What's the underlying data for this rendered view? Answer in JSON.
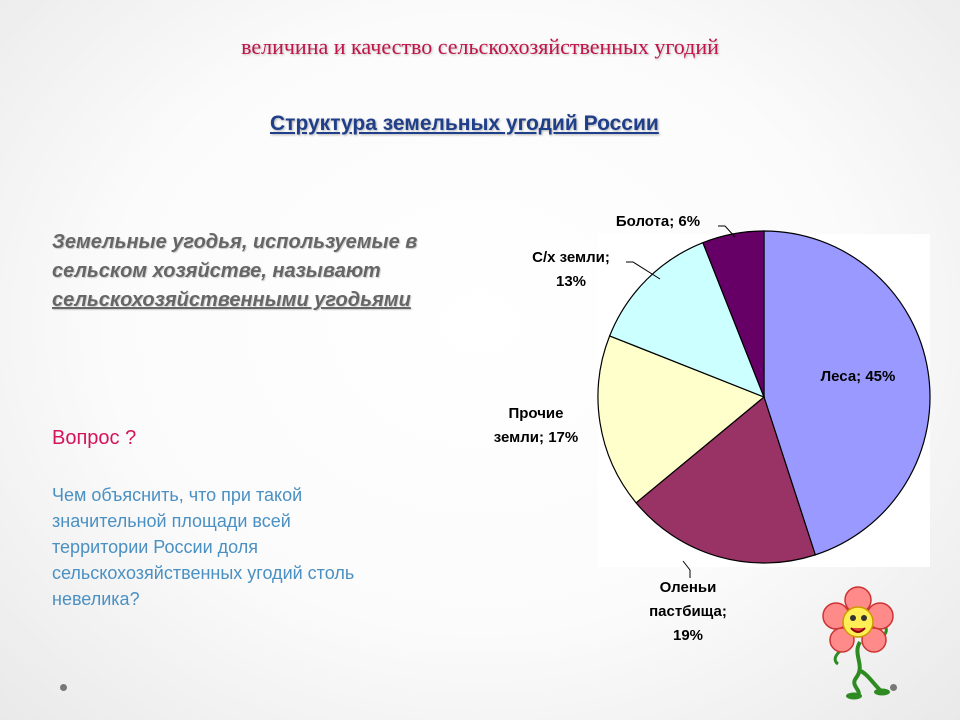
{
  "slide": {
    "title": "величина и качество сельскохозяйственных угодий",
    "chart_heading": " Структура земельных угодий России",
    "definition_prefix": "Земельные угодья, используемые в сельском хозяйстве, называют ",
    "definition_term": "сельскохозяйственными угодьями",
    "question_label": "Вопрос ?",
    "question_text": "Чем объяснить, что при такой значительной площади всей территории России доля сельскохозяйственных угодий столь невелика?"
  },
  "chart_data": {
    "type": "pie",
    "title": "",
    "slices": [
      {
        "label": "Леса",
        "value": 45,
        "color": "#9999ff",
        "label_text": [
          "Леса; 45%"
        ]
      },
      {
        "label": "Оленьи пастбища",
        "value": 19,
        "color": "#993366",
        "label_text": [
          "Оленьи",
          "пастбища;",
          "19%"
        ]
      },
      {
        "label": "Прочие земли",
        "value": 17,
        "color": "#ffffcc",
        "label_text": [
          "Прочие",
          "земли; 17%"
        ]
      },
      {
        "label": "С/х земли",
        "value": 13,
        "color": "#ccffff",
        "label_text": [
          "С/х земли;",
          "13%"
        ]
      },
      {
        "label": "Болота",
        "value": 6,
        "color": "#660066",
        "label_text": [
          "Болота; 6%"
        ]
      }
    ]
  }
}
